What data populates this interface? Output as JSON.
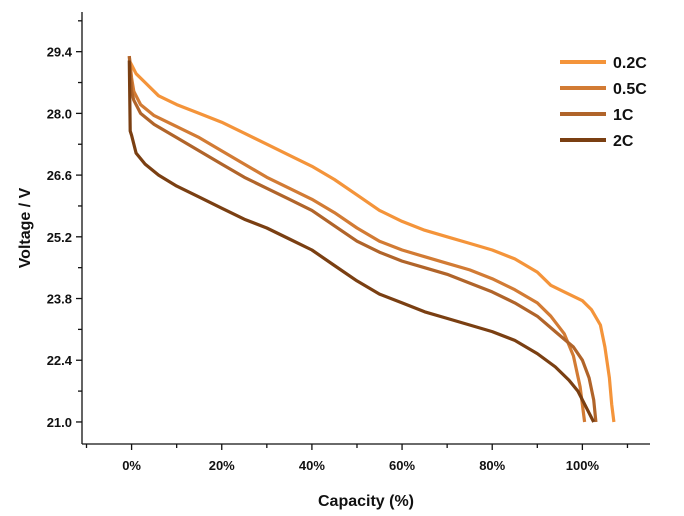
{
  "chart_data": {
    "type": "line",
    "title": "",
    "xlabel": "Capacity (%)",
    "ylabel": "Voltage / V",
    "xlim": [
      -11,
      115
    ],
    "ylim": [
      20.5,
      30.3
    ],
    "x_ticks": [
      0,
      20,
      40,
      60,
      80,
      100
    ],
    "x_tick_labels": [
      "0%",
      "20%",
      "40%",
      "60%",
      "80%",
      "100%"
    ],
    "y_ticks": [
      21.0,
      22.4,
      23.8,
      25.2,
      26.6,
      28.0,
      29.4
    ],
    "y_tick_labels": [
      "21.0",
      "22.4",
      "23.8",
      "25.2",
      "26.6",
      "28.0",
      "29.4"
    ],
    "grid": false,
    "legend_position": "top-right",
    "series": [
      {
        "name": "0.2C",
        "color": "#F4943A",
        "points": [
          [
            -0.5,
            29.2
          ],
          [
            0,
            29.1
          ],
          [
            1,
            28.9
          ],
          [
            3,
            28.7
          ],
          [
            6,
            28.4
          ],
          [
            10,
            28.2
          ],
          [
            15,
            28.0
          ],
          [
            20,
            27.8
          ],
          [
            25,
            27.55
          ],
          [
            30,
            27.3
          ],
          [
            35,
            27.05
          ],
          [
            40,
            26.8
          ],
          [
            45,
            26.5
          ],
          [
            50,
            26.15
          ],
          [
            55,
            25.8
          ],
          [
            60,
            25.55
          ],
          [
            65,
            25.35
          ],
          [
            70,
            25.2
          ],
          [
            75,
            25.05
          ],
          [
            80,
            24.9
          ],
          [
            85,
            24.7
          ],
          [
            90,
            24.4
          ],
          [
            93,
            24.1
          ],
          [
            96,
            23.95
          ],
          [
            100,
            23.75
          ],
          [
            102,
            23.55
          ],
          [
            104,
            23.2
          ],
          [
            105,
            22.7
          ],
          [
            106,
            22.0
          ],
          [
            106.5,
            21.4
          ],
          [
            107,
            21.0
          ]
        ]
      },
      {
        "name": "0.5C",
        "color": "#D27B34",
        "points": [
          [
            -0.5,
            29.3
          ],
          [
            0,
            28.8
          ],
          [
            0.5,
            28.5
          ],
          [
            2,
            28.2
          ],
          [
            5,
            27.95
          ],
          [
            10,
            27.7
          ],
          [
            15,
            27.45
          ],
          [
            20,
            27.15
          ],
          [
            25,
            26.85
          ],
          [
            30,
            26.55
          ],
          [
            35,
            26.3
          ],
          [
            40,
            26.05
          ],
          [
            45,
            25.75
          ],
          [
            50,
            25.4
          ],
          [
            55,
            25.1
          ],
          [
            60,
            24.9
          ],
          [
            65,
            24.75
          ],
          [
            70,
            24.6
          ],
          [
            75,
            24.45
          ],
          [
            80,
            24.25
          ],
          [
            85,
            24.0
          ],
          [
            90,
            23.7
          ],
          [
            93,
            23.4
          ],
          [
            96,
            23.0
          ],
          [
            98,
            22.5
          ],
          [
            99.5,
            21.8
          ],
          [
            100.5,
            21.0
          ]
        ]
      },
      {
        "name": "1C",
        "color": "#B0642A",
        "points": [
          [
            -0.5,
            29.3
          ],
          [
            0,
            28.5
          ],
          [
            0.5,
            28.3
          ],
          [
            2,
            28.0
          ],
          [
            5,
            27.75
          ],
          [
            10,
            27.45
          ],
          [
            15,
            27.15
          ],
          [
            20,
            26.85
          ],
          [
            25,
            26.55
          ],
          [
            30,
            26.3
          ],
          [
            35,
            26.05
          ],
          [
            40,
            25.8
          ],
          [
            45,
            25.45
          ],
          [
            50,
            25.1
          ],
          [
            55,
            24.85
          ],
          [
            60,
            24.65
          ],
          [
            65,
            24.5
          ],
          [
            70,
            24.35
          ],
          [
            75,
            24.15
          ],
          [
            80,
            23.95
          ],
          [
            85,
            23.7
          ],
          [
            90,
            23.4
          ],
          [
            94,
            23.05
          ],
          [
            98,
            22.7
          ],
          [
            100,
            22.4
          ],
          [
            101.5,
            22.0
          ],
          [
            102.5,
            21.5
          ],
          [
            103,
            21.0
          ]
        ]
      },
      {
        "name": "2C",
        "color": "#7A3F12",
        "points": [
          [
            -0.5,
            29.2
          ],
          [
            -0.3,
            27.6
          ],
          [
            0,
            27.5
          ],
          [
            1,
            27.1
          ],
          [
            3,
            26.85
          ],
          [
            6,
            26.6
          ],
          [
            10,
            26.35
          ],
          [
            15,
            26.1
          ],
          [
            20,
            25.85
          ],
          [
            25,
            25.6
          ],
          [
            30,
            25.4
          ],
          [
            35,
            25.15
          ],
          [
            40,
            24.9
          ],
          [
            45,
            24.55
          ],
          [
            50,
            24.2
          ],
          [
            55,
            23.9
          ],
          [
            60,
            23.7
          ],
          [
            65,
            23.5
          ],
          [
            70,
            23.35
          ],
          [
            75,
            23.2
          ],
          [
            80,
            23.05
          ],
          [
            85,
            22.85
          ],
          [
            90,
            22.55
          ],
          [
            94,
            22.25
          ],
          [
            97,
            21.95
          ],
          [
            99,
            21.7
          ],
          [
            101,
            21.3
          ],
          [
            102.5,
            21.0
          ]
        ]
      }
    ]
  }
}
